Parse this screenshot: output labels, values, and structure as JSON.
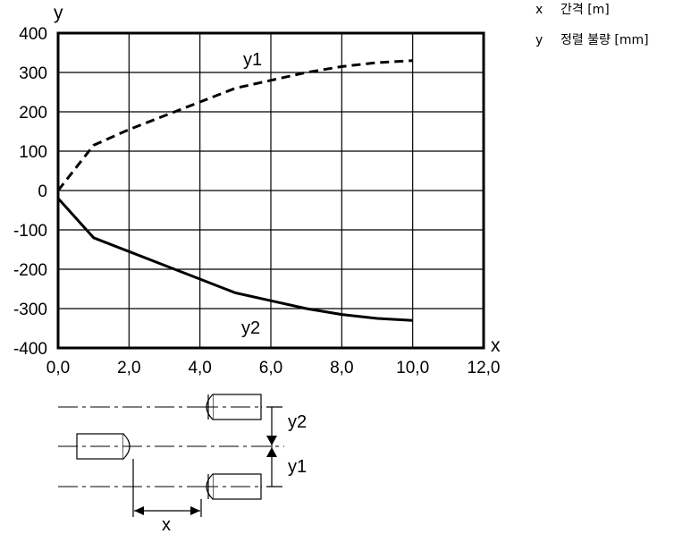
{
  "chart_data": {
    "type": "line",
    "xlabel": "x",
    "ylabel": "y",
    "xlim": [
      0,
      12
    ],
    "ylim": [
      -400,
      400
    ],
    "x_ticks": [
      "0,0",
      "2,0",
      "4,0",
      "6,0",
      "8,0",
      "10,0",
      "12,0"
    ],
    "y_ticks": [
      "400",
      "300",
      "200",
      "100",
      "0",
      "-100",
      "-200",
      "-300",
      "-400"
    ],
    "grid": true,
    "series": [
      {
        "name": "y1",
        "style": "dashed",
        "x": [
          0,
          1,
          2,
          3,
          4,
          5,
          6,
          7,
          8,
          9,
          10
        ],
        "y": [
          0,
          115,
          155,
          190,
          225,
          260,
          280,
          300,
          315,
          325,
          330
        ]
      },
      {
        "name": "y2",
        "style": "solid",
        "x": [
          0,
          1,
          2,
          3,
          4,
          5,
          6,
          7,
          8,
          9,
          10
        ],
        "y": [
          -20,
          -120,
          -155,
          -190,
          -225,
          -260,
          -280,
          -300,
          -315,
          -325,
          -330
        ]
      }
    ]
  },
  "legend": [
    {
      "key": "x",
      "text": "간격 [m]"
    },
    {
      "key": "y",
      "text": "정렬 불량 [mm]"
    }
  ],
  "diagram": {
    "y2_label": "y2",
    "y1_label": "y1",
    "x_label": "x"
  }
}
